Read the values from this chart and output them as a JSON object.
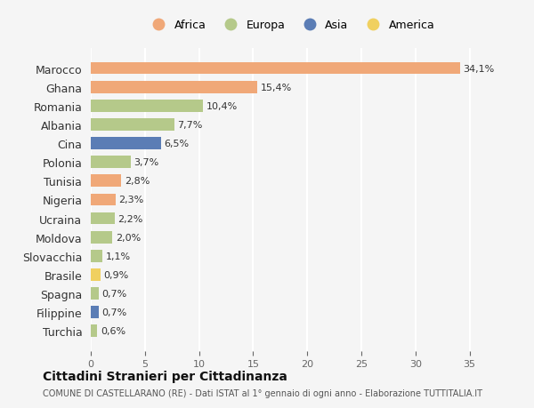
{
  "countries": [
    "Marocco",
    "Ghana",
    "Romania",
    "Albania",
    "Cina",
    "Polonia",
    "Tunisia",
    "Nigeria",
    "Ucraina",
    "Moldova",
    "Slovacchia",
    "Brasile",
    "Spagna",
    "Filippine",
    "Turchia"
  ],
  "values": [
    34.1,
    15.4,
    10.4,
    7.7,
    6.5,
    3.7,
    2.8,
    2.3,
    2.2,
    2.0,
    1.1,
    0.9,
    0.7,
    0.7,
    0.6
  ],
  "labels": [
    "34,1%",
    "15,4%",
    "10,4%",
    "7,7%",
    "6,5%",
    "3,7%",
    "2,8%",
    "2,3%",
    "2,2%",
    "2,0%",
    "1,1%",
    "0,9%",
    "0,7%",
    "0,7%",
    "0,6%"
  ],
  "continents": [
    "Africa",
    "Africa",
    "Europa",
    "Europa",
    "Asia",
    "Europa",
    "Africa",
    "Africa",
    "Europa",
    "Europa",
    "Europa",
    "America",
    "Europa",
    "Asia",
    "Europa"
  ],
  "colors": {
    "Africa": "#F0A878",
    "Europa": "#B5C98A",
    "Asia": "#5B7DB5",
    "America": "#F0D060"
  },
  "legend_order": [
    "Africa",
    "Europa",
    "Asia",
    "America"
  ],
  "legend_colors": [
    "#F0A878",
    "#B5C98A",
    "#5B7DB5",
    "#F0D060"
  ],
  "xlim": [
    0,
    37
  ],
  "xticks": [
    0,
    5,
    10,
    15,
    20,
    25,
    30,
    35
  ],
  "title": "Cittadini Stranieri per Cittadinanza",
  "subtitle": "COMUNE DI CASTELLARANO (RE) - Dati ISTAT al 1° gennaio di ogni anno - Elaborazione TUTTITALIA.IT",
  "bg_color": "#f5f5f5",
  "grid_color": "#ffffff",
  "bar_height": 0.65
}
